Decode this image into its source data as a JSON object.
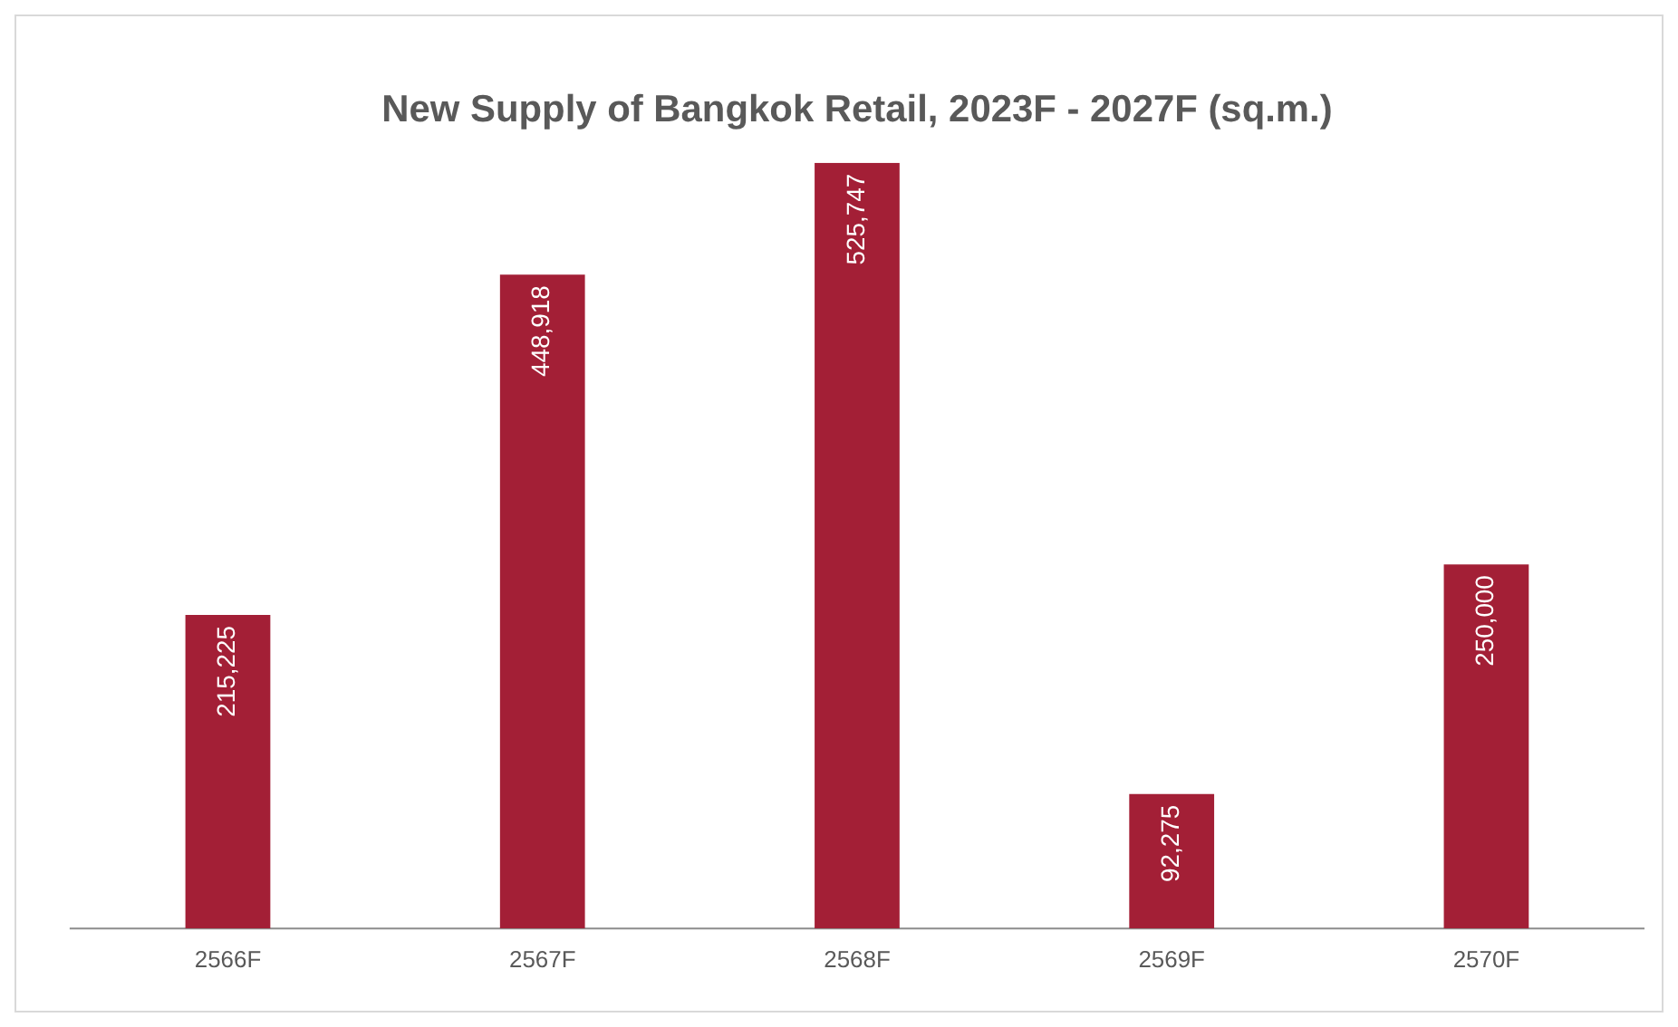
{
  "chart_data": {
    "type": "bar",
    "title": "New Supply of Bangkok Retail, 2023F - 2027F (sq.m.)",
    "categories": [
      "2566F",
      "2567F",
      "2568F",
      "2569F",
      "2570F"
    ],
    "values": [
      215225,
      448918,
      525747,
      92275,
      250000
    ],
    "value_labels": [
      "215,225",
      "448,918",
      "525,747",
      "92,275",
      "250,000"
    ],
    "color": "#a31f36",
    "grid": false,
    "legend": false
  }
}
